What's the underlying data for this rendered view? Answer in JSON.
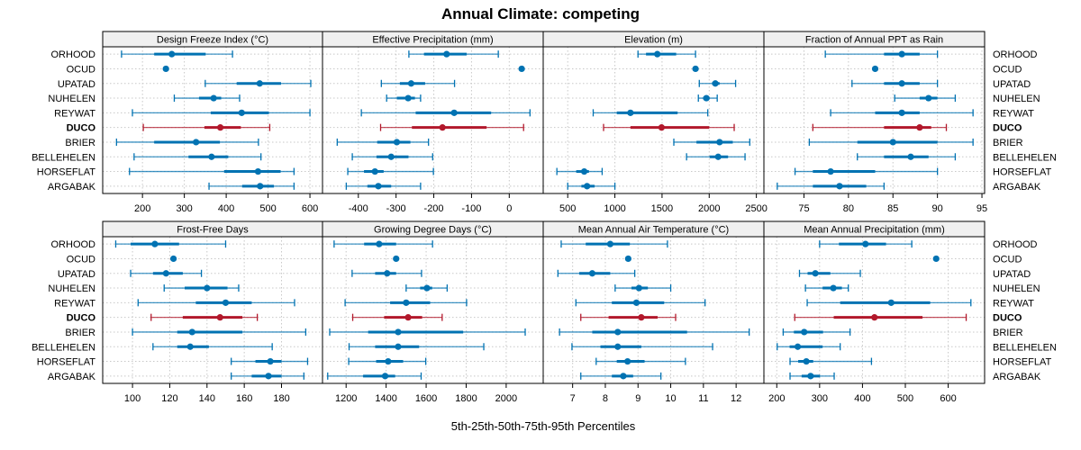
{
  "chart_data": {
    "type": "dot-interval",
    "title": "Annual Climate: competing",
    "xlabel": "5th-25th-50th-75th-95th Percentiles",
    "row_labels": [
      "ORHOOD",
      "OCUD",
      "UPATAD",
      "NUHELEN",
      "REYWAT",
      "DUCO",
      "BRIER",
      "BELLEHELEN",
      "HORSEFLAT",
      "ARGABAK"
    ],
    "highlight_row": "DUCO",
    "colors": {
      "normal": "#0072b2",
      "highlight": "#b2182b",
      "strip_bg": "#f0f0f0",
      "grid": "#c8c8c8"
    },
    "grid": true,
    "panels": [
      {
        "title": "Design Freeze Index (°C)",
        "ticks": [
          200,
          300,
          400,
          500,
          600
        ],
        "xlim": [
          105,
          630
        ],
        "stats": [
          [
            150,
            228,
            270,
            351,
            415
          ],
          [
            256,
            256,
            256,
            256,
            256
          ],
          [
            350,
            425,
            480,
            531,
            602
          ],
          [
            276,
            335,
            370,
            388,
            432
          ],
          [
            176,
            363,
            437,
            502,
            600
          ],
          [
            202,
            348,
            386,
            435,
            504
          ],
          [
            138,
            228,
            328,
            385,
            477
          ],
          [
            180,
            310,
            365,
            405,
            483
          ],
          [
            169,
            395,
            476,
            530,
            562
          ],
          [
            359,
            438,
            481,
            514,
            562
          ]
        ]
      },
      {
        "title": "Effective Precipitation (mm)",
        "ticks": [
          -400,
          -300,
          -200,
          -100,
          0
        ],
        "xlim": [
          -495,
          90
        ],
        "stats": [
          [
            -266,
            -226,
            -166,
            -113,
            -29
          ],
          [
            33,
            33,
            33,
            33,
            33
          ],
          [
            -339,
            -290,
            -260,
            -223,
            -145
          ],
          [
            -325,
            -298,
            -268,
            -250,
            -235
          ],
          [
            -392,
            -248,
            -146,
            -48,
            55
          ],
          [
            -341,
            -258,
            -177,
            -60,
            38
          ],
          [
            -456,
            -350,
            -298,
            -262,
            -214
          ],
          [
            -416,
            -352,
            -313,
            -267,
            -203
          ],
          [
            -428,
            -385,
            -356,
            -333,
            -201
          ],
          [
            -432,
            -376,
            -347,
            -313,
            -235
          ]
        ]
      },
      {
        "title": "Elevation (m)",
        "ticks": [
          500,
          1000,
          1500,
          2000,
          2500
        ],
        "xlim": [
          240,
          2580
        ],
        "stats": [
          [
            1245,
            1330,
            1450,
            1650,
            1855
          ],
          [
            1855,
            1855,
            1855,
            1855,
            1855
          ],
          [
            1895,
            2030,
            2065,
            2110,
            2280
          ],
          [
            1885,
            1935,
            1970,
            2005,
            2085
          ],
          [
            770,
            1020,
            1165,
            1665,
            1985
          ],
          [
            880,
            1165,
            1495,
            2000,
            2265
          ],
          [
            1625,
            1865,
            2110,
            2250,
            2430
          ],
          [
            1760,
            2005,
            2095,
            2200,
            2380
          ],
          [
            385,
            590,
            675,
            725,
            865
          ],
          [
            500,
            645,
            705,
            785,
            1000
          ]
        ]
      },
      {
        "title": "Fraction of Annual PPT as Rain",
        "ticks": [
          75,
          80,
          85,
          90,
          95
        ],
        "xlim": [
          70.5,
          95.3
        ],
        "stats": [
          [
            77.4,
            84.0,
            86.0,
            88.0,
            90.0
          ],
          [
            83.0,
            83.0,
            83.0,
            83.0,
            83.0
          ],
          [
            80.4,
            84.0,
            86.0,
            88.0,
            90.0
          ],
          [
            85.2,
            88.0,
            89.0,
            90.0,
            92.0
          ],
          [
            78.0,
            83.0,
            86.0,
            88.0,
            94.0
          ],
          [
            76.0,
            84.0,
            88.0,
            89.3,
            91.0
          ],
          [
            75.6,
            81.0,
            85.0,
            90.0,
            94.0
          ],
          [
            81.0,
            84.0,
            87.0,
            89.0,
            92.0
          ],
          [
            74.0,
            76.0,
            78.0,
            83.0,
            90.0
          ],
          [
            72.0,
            76.0,
            79.0,
            82.0,
            84.0
          ]
        ]
      },
      {
        "title": "Frost-Free Days",
        "ticks": [
          100,
          120,
          140,
          160,
          180
        ],
        "xlim": [
          84,
          202
        ],
        "stats": [
          [
            91,
            99,
            112,
            125,
            150
          ],
          [
            122,
            122,
            122,
            122,
            122
          ],
          [
            99,
            111,
            118,
            127,
            137
          ],
          [
            117,
            128,
            140,
            151,
            157
          ],
          [
            103,
            134,
            150,
            164,
            187
          ],
          [
            110,
            127,
            147,
            159,
            167
          ],
          [
            100,
            124,
            132,
            159,
            193
          ],
          [
            111,
            124,
            131,
            141,
            175
          ],
          [
            153,
            166,
            174,
            180,
            194
          ],
          [
            153,
            164,
            173,
            180,
            192
          ]
        ]
      },
      {
        "title": "Growing Degree Days (°C)",
        "ticks": [
          1200,
          1400,
          1600,
          1800,
          2000
        ],
        "xlim": [
          1082,
          2185
        ],
        "stats": [
          [
            1140,
            1290,
            1365,
            1450,
            1632
          ],
          [
            1450,
            1450,
            1450,
            1450,
            1450
          ],
          [
            1230,
            1345,
            1405,
            1450,
            1577
          ],
          [
            1500,
            1570,
            1604,
            1630,
            1705
          ],
          [
            1195,
            1420,
            1500,
            1620,
            1802
          ],
          [
            1233,
            1390,
            1510,
            1580,
            1680
          ],
          [
            1118,
            1310,
            1460,
            1785,
            2095
          ],
          [
            1215,
            1345,
            1460,
            1565,
            1888
          ],
          [
            1213,
            1350,
            1410,
            1485,
            1598
          ],
          [
            1108,
            1285,
            1395,
            1445,
            1575
          ]
        ]
      },
      {
        "title": "Mean Annual Air Temperature (°C)",
        "ticks": [
          7,
          8,
          9,
          10,
          11,
          12
        ],
        "xlim": [
          6.1,
          12.85
        ],
        "stats": [
          [
            6.65,
            7.4,
            8.15,
            8.75,
            9.9
          ],
          [
            8.7,
            8.7,
            8.7,
            8.7,
            8.7
          ],
          [
            6.55,
            7.2,
            7.6,
            8.15,
            8.9
          ],
          [
            8.3,
            8.8,
            9.03,
            9.3,
            10.0
          ],
          [
            7.1,
            8.2,
            8.95,
            9.8,
            11.05
          ],
          [
            7.25,
            8.1,
            9.1,
            9.6,
            10.15
          ],
          [
            6.6,
            7.6,
            8.38,
            10.5,
            12.4
          ],
          [
            6.98,
            7.85,
            8.38,
            9.1,
            11.28
          ],
          [
            7.72,
            8.35,
            8.68,
            9.2,
            10.45
          ],
          [
            7.25,
            8.2,
            8.55,
            8.85,
            9.7
          ]
        ]
      },
      {
        "title": "Mean Annual Precipitation (mm)",
        "ticks": [
          200,
          300,
          400,
          500,
          600
        ],
        "xlim": [
          170,
          685
        ],
        "stats": [
          [
            300,
            345,
            407,
            455,
            515
          ],
          [
            572,
            572,
            572,
            572,
            572
          ],
          [
            253,
            272,
            290,
            325,
            395
          ],
          [
            267,
            307,
            332,
            352,
            367
          ],
          [
            271,
            348,
            467,
            558,
            653
          ],
          [
            242,
            333,
            428,
            540,
            642
          ],
          [
            215,
            240,
            264,
            308,
            371
          ],
          [
            201,
            230,
            249,
            307,
            348
          ],
          [
            231,
            250,
            269,
            285,
            421
          ],
          [
            231,
            258,
            279,
            301,
            334
          ]
        ]
      }
    ]
  }
}
